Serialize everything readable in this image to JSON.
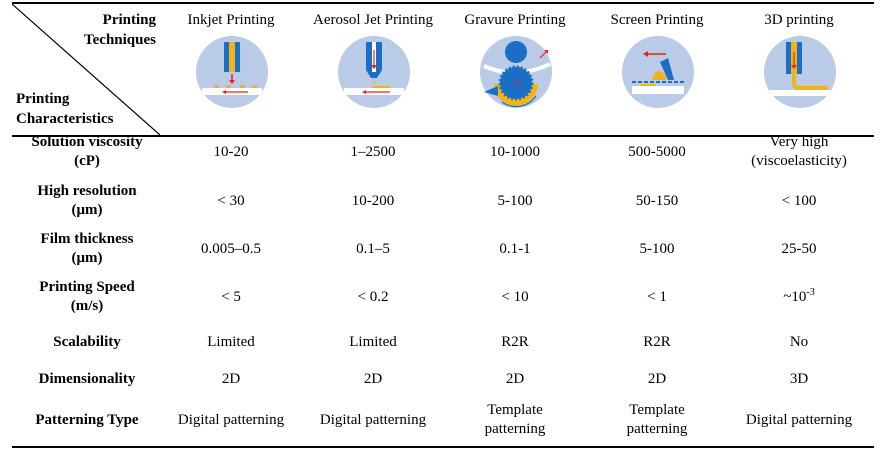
{
  "header": {
    "corner_top": [
      "Printing",
      "Techniques"
    ],
    "corner_bottom": [
      "Printing",
      "Characteristics"
    ],
    "techniques": [
      "Inkjet Printing",
      "Aerosol Jet Printing",
      "Gravure Printing",
      "Screen Printing",
      "3D printing"
    ],
    "illustrations": [
      "inkjet-printing-illustration",
      "aerosol-jet-illustration",
      "gravure-printing-illustration",
      "screen-printing-illustration",
      "3d-printing-illustration"
    ]
  },
  "rows": [
    {
      "label": [
        "Solution viscosity",
        "(cP)"
      ],
      "values": [
        [
          "10-20"
        ],
        [
          "1–2500"
        ],
        [
          "10-1000"
        ],
        [
          "500-5000"
        ],
        [
          "Very high",
          "(viscoelasticity)"
        ]
      ]
    },
    {
      "label": [
        "High resolution",
        "(μm)"
      ],
      "values": [
        [
          "< 30"
        ],
        [
          "10-200"
        ],
        [
          "5-100"
        ],
        [
          "50-150"
        ],
        [
          "< 100"
        ]
      ]
    },
    {
      "label": [
        "Film thickness",
        "(μm)"
      ],
      "values": [
        [
          "0.005–0.5"
        ],
        [
          "0.1–5"
        ],
        [
          "0.1-1"
        ],
        [
          "5-100"
        ],
        [
          "25-50"
        ]
      ]
    },
    {
      "label": [
        "Printing Speed",
        "(m/s)"
      ],
      "values": [
        [
          "< 5"
        ],
        [
          "< 0.2"
        ],
        [
          "< 10"
        ],
        [
          "< 1"
        ],
        [
          "~10"
        ]
      ],
      "superscript": "-3"
    },
    {
      "label": [
        "Scalability"
      ],
      "values": [
        [
          "Limited"
        ],
        [
          "Limited"
        ],
        [
          "R2R"
        ],
        [
          "R2R"
        ],
        [
          "No"
        ]
      ]
    },
    {
      "label": [
        "Dimensionality"
      ],
      "values": [
        [
          "2D"
        ],
        [
          "2D"
        ],
        [
          "2D"
        ],
        [
          "2D"
        ],
        [
          "3D"
        ]
      ]
    },
    {
      "label": [
        "Patterning Type"
      ],
      "values": [
        [
          "Digital patterning"
        ],
        [
          "Digital patterning"
        ],
        [
          "Template",
          "patterning"
        ],
        [
          "Template",
          "patterning"
        ],
        [
          "Digital patterning"
        ]
      ]
    }
  ],
  "colors": {
    "circle": "#b9cbe6",
    "blue": "#1a6fc4",
    "yellow": "#f2b318",
    "red": "#e0261c",
    "white": "#ffffff"
  }
}
